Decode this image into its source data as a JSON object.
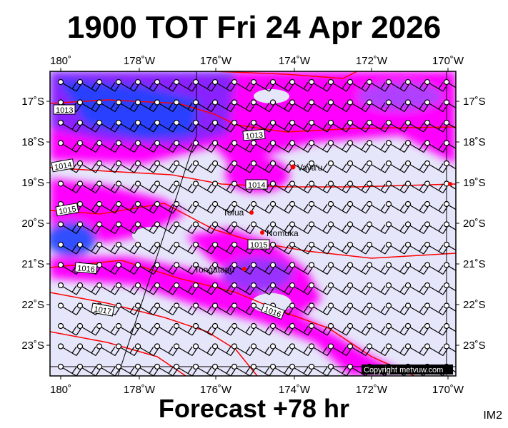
{
  "title": "1900 TOT Fri 24 Apr 2026",
  "footer": "Forecast +78 hr",
  "image_code": "IM2",
  "copyright": "Copyright metvuw.com",
  "lon_labels": [
    "180˚",
    "178˚W",
    "176˚W",
    "174˚W",
    "172˚W",
    "170˚W"
  ],
  "lat_labels": [
    "17˚S",
    "18˚S",
    "19˚S",
    "20˚S",
    "21˚S",
    "22˚S",
    "23˚S"
  ],
  "isobar_labels": [
    "1013",
    "1013",
    "1014",
    "1014",
    "1015",
    "1015",
    "1016",
    "1016",
    "1017"
  ],
  "places": [
    "Vava'u",
    "Tofua",
    "Nomuka",
    "Tongatapu"
  ],
  "colors": {
    "background": "#e6e6fa",
    "magenta": "#ff00ff",
    "violet": "#a020f0",
    "blue": "#1e40ff",
    "isobar": "#ff0000",
    "place_marker": "#ff0000"
  }
}
